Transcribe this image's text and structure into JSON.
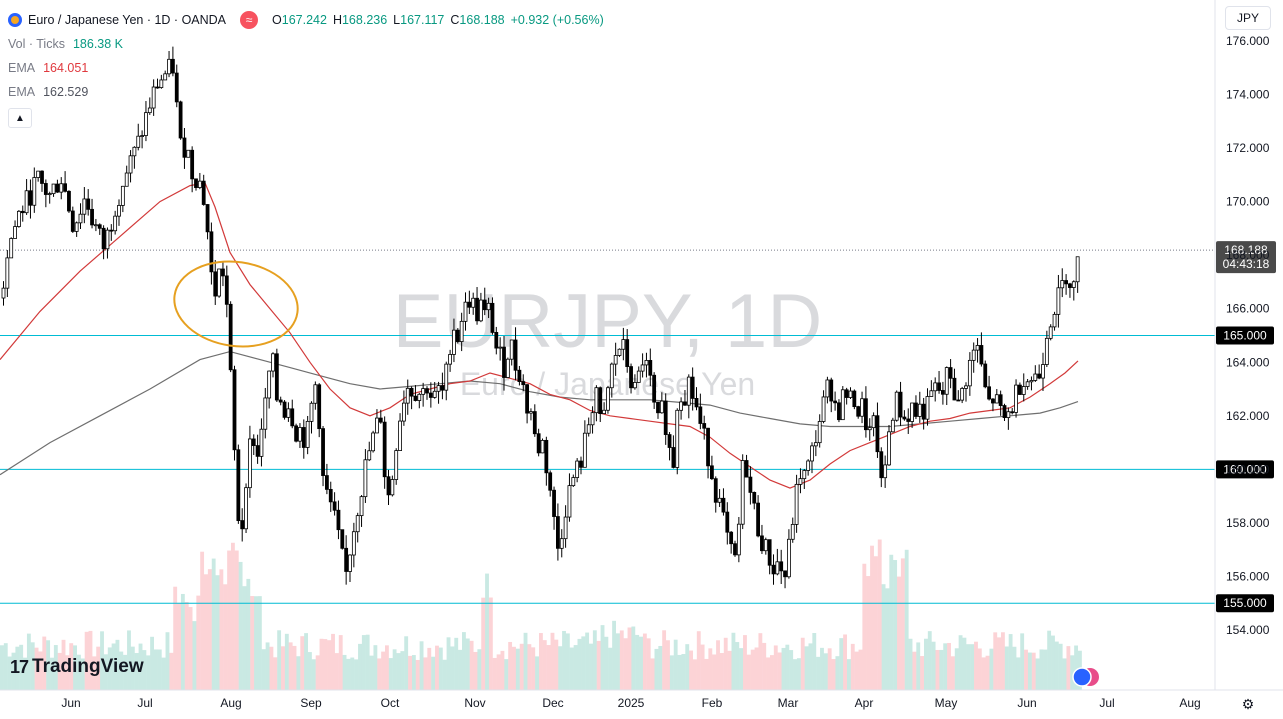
{
  "header": {
    "symbol_title": "Euro / Japanese Yen · 1D · OANDA",
    "compare_icon": "≈",
    "ohlc": [
      {
        "label": "O",
        "value": "167.242"
      },
      {
        "label": "H",
        "value": "168.236"
      },
      {
        "label": "L",
        "value": "167.117"
      },
      {
        "label": "C",
        "value": "168.188"
      }
    ],
    "change": "+0.932 (+0.56%)"
  },
  "indicators": [
    {
      "name": "Vol · Ticks",
      "value": "186.38 K",
      "color": "#089981"
    },
    {
      "name": "EMA",
      "value": "164.051",
      "color": "#e0393e"
    },
    {
      "name": "EMA",
      "value": "162.529",
      "color": "#50535e"
    }
  ],
  "currency_button": "JPY",
  "logo_text": "TradingView",
  "watermark": {
    "main": "EURJPY, 1D",
    "sub": "Euro / Japanese Yen"
  },
  "chart_data": {
    "type": "candlestick",
    "y_axis": {
      "min": 153,
      "max": 177,
      "ticks": [
        "154.000",
        "156.000",
        "158.000",
        "160.000",
        "162.000",
        "164.000",
        "166.000",
        "168.000",
        "170.000",
        "172.000",
        "174.000",
        "176.000"
      ]
    },
    "x_axis": {
      "labels": [
        "Jun",
        "Jul",
        "Aug",
        "Sep",
        "Oct",
        "Nov",
        "Dec",
        "2025",
        "Feb",
        "Mar",
        "Apr",
        "May",
        "Jun",
        "Jul",
        "Aug"
      ]
    },
    "last_price": {
      "value": "168.188",
      "countdown": "04:43:18"
    },
    "horizontal_levels": [
      "165.000",
      "160.000",
      "155.000"
    ],
    "price_path": [
      [
        0,
        166.4
      ],
      [
        6,
        168.2
      ],
      [
        12,
        168.9
      ],
      [
        18,
        169.6
      ],
      [
        24,
        169.9
      ],
      [
        30,
        170.4
      ],
      [
        36,
        170.8
      ],
      [
        42,
        170.5
      ],
      [
        48,
        170.2
      ],
      [
        54,
        170.6
      ],
      [
        60,
        170.9
      ],
      [
        66,
        170.0
      ],
      [
        72,
        169.1
      ],
      [
        78,
        169.6
      ],
      [
        84,
        170.2
      ],
      [
        90,
        169.4
      ],
      [
        96,
        168.9
      ],
      [
        102,
        168.3
      ],
      [
        108,
        169.0
      ],
      [
        114,
        169.9
      ],
      [
        120,
        170.6
      ],
      [
        126,
        171.2
      ],
      [
        132,
        171.7
      ],
      [
        138,
        172.3
      ],
      [
        144,
        173.1
      ],
      [
        150,
        173.8
      ],
      [
        156,
        174.4
      ],
      [
        162,
        174.7
      ],
      [
        168,
        174.9
      ],
      [
        173,
        175.1
      ],
      [
        176,
        173.0
      ],
      [
        180,
        171.8
      ],
      [
        184,
        172.2
      ],
      [
        188,
        171.6
      ],
      [
        192,
        170.9
      ],
      [
        196,
        171.0
      ],
      [
        200,
        170.5
      ],
      [
        204,
        169.8
      ],
      [
        208,
        168.0
      ],
      [
        212,
        166.3
      ],
      [
        216,
        167.1
      ],
      [
        220,
        167.6
      ],
      [
        224,
        167.0
      ],
      [
        228,
        164.2
      ],
      [
        232,
        161.3
      ],
      [
        236,
        158.4
      ],
      [
        240,
        157.6
      ],
      [
        244,
        159.6
      ],
      [
        248,
        160.8
      ],
      [
        252,
        161.2
      ],
      [
        256,
        160.4
      ],
      [
        260,
        161.7
      ],
      [
        264,
        162.4
      ],
      [
        268,
        163.7
      ],
      [
        272,
        163.9
      ],
      [
        276,
        162.4
      ],
      [
        280,
        162.7
      ],
      [
        284,
        162.1
      ],
      [
        288,
        162.6
      ],
      [
        292,
        161.7
      ],
      [
        296,
        161.3
      ],
      [
        300,
        161.6
      ],
      [
        304,
        160.9
      ],
      [
        308,
        161.8
      ],
      [
        312,
        162.9
      ],
      [
        316,
        163.4
      ],
      [
        320,
        159.9
      ],
      [
        324,
        159.2
      ],
      [
        328,
        158.8
      ],
      [
        332,
        158.3
      ],
      [
        336,
        157.6
      ],
      [
        340,
        156.8
      ],
      [
        344,
        155.9
      ],
      [
        348,
        156.9
      ],
      [
        352,
        157.8
      ],
      [
        356,
        158.6
      ],
      [
        360,
        159.3
      ],
      [
        364,
        160.1
      ],
      [
        368,
        160.7
      ],
      [
        372,
        161.2
      ],
      [
        376,
        161.7
      ],
      [
        380,
        162.1
      ],
      [
        384,
        159.3
      ],
      [
        388,
        158.9
      ],
      [
        392,
        160.1
      ],
      [
        396,
        161.5
      ],
      [
        400,
        162.3
      ],
      [
        404,
        163.0
      ],
      [
        408,
        163.2
      ],
      [
        412,
        162.8
      ],
      [
        416,
        163.1
      ],
      [
        420,
        162.6
      ],
      [
        424,
        163.3
      ],
      [
        428,
        162.9
      ],
      [
        432,
        162.5
      ],
      [
        436,
        163.0
      ],
      [
        440,
        162.7
      ],
      [
        444,
        163.3
      ],
      [
        448,
        164.6
      ],
      [
        452,
        165.4
      ],
      [
        456,
        164.9
      ],
      [
        460,
        165.7
      ],
      [
        464,
        166.0
      ],
      [
        468,
        166.4
      ],
      [
        472,
        166.1
      ],
      [
        476,
        165.8
      ],
      [
        480,
        166.2
      ],
      [
        484,
        165.6
      ],
      [
        488,
        166.0
      ],
      [
        492,
        165.1
      ],
      [
        496,
        164.3
      ],
      [
        500,
        164.1
      ],
      [
        504,
        163.7
      ],
      [
        508,
        164.9
      ],
      [
        512,
        164.3
      ],
      [
        516,
        163.5
      ],
      [
        520,
        163.8
      ],
      [
        524,
        162.1
      ],
      [
        528,
        162.6
      ],
      [
        532,
        161.4
      ],
      [
        536,
        160.7
      ],
      [
        540,
        161.2
      ],
      [
        544,
        160.3
      ],
      [
        548,
        159.5
      ],
      [
        552,
        158.2
      ],
      [
        556,
        157.0
      ],
      [
        560,
        157.7
      ],
      [
        564,
        158.6
      ],
      [
        568,
        159.2
      ],
      [
        572,
        159.7
      ],
      [
        576,
        160.0
      ],
      [
        580,
        160.4
      ],
      [
        584,
        161.1
      ],
      [
        588,
        161.9
      ],
      [
        592,
        162.6
      ],
      [
        596,
        163.2
      ],
      [
        600,
        161.0
      ],
      [
        604,
        162.4
      ],
      [
        608,
        163.3
      ],
      [
        612,
        164.1
      ],
      [
        616,
        164.4
      ],
      [
        620,
        164.7
      ],
      [
        624,
        164.2
      ],
      [
        628,
        163.6
      ],
      [
        632,
        162.8
      ],
      [
        636,
        163.1
      ],
      [
        640,
        164.2
      ],
      [
        644,
        163.9
      ],
      [
        648,
        163.4
      ],
      [
        652,
        162.4
      ],
      [
        656,
        161.6
      ],
      [
        660,
        162.2
      ],
      [
        664,
        161.8
      ],
      [
        668,
        160.7
      ],
      [
        672,
        160.3
      ],
      [
        676,
        162.6
      ],
      [
        680,
        163.0
      ],
      [
        684,
        162.8
      ],
      [
        688,
        163.4
      ],
      [
        692,
        162.6
      ],
      [
        696,
        162.2
      ],
      [
        700,
        161.4
      ],
      [
        704,
        161.0
      ],
      [
        708,
        160.3
      ],
      [
        712,
        159.6
      ],
      [
        716,
        158.9
      ],
      [
        720,
        158.5
      ],
      [
        724,
        157.6
      ],
      [
        728,
        157.1
      ],
      [
        732,
        156.4
      ],
      [
        736,
        156.9
      ],
      [
        740,
        159.8
      ],
      [
        744,
        160.4
      ],
      [
        748,
        159.2
      ],
      [
        752,
        158.6
      ],
      [
        756,
        157.9
      ],
      [
        760,
        157.4
      ],
      [
        764,
        157.0
      ],
      [
        768,
        156.7
      ],
      [
        772,
        156.3
      ],
      [
        776,
        156.5
      ],
      [
        780,
        156.2
      ],
      [
        784,
        156.0
      ],
      [
        788,
        157.2
      ],
      [
        792,
        158.4
      ],
      [
        796,
        159.3
      ],
      [
        800,
        160.1
      ],
      [
        804,
        159.6
      ],
      [
        808,
        160.3
      ],
      [
        812,
        160.8
      ],
      [
        816,
        161.6
      ],
      [
        820,
        162.1
      ],
      [
        824,
        162.7
      ],
      [
        828,
        163.3
      ],
      [
        832,
        162.6
      ],
      [
        836,
        162.1
      ],
      [
        840,
        162.5
      ],
      [
        844,
        163.0
      ],
      [
        848,
        162.4
      ],
      [
        852,
        162.8
      ],
      [
        856,
        162.1
      ],
      [
        860,
        162.4
      ],
      [
        864,
        161.8
      ],
      [
        868,
        161.3
      ],
      [
        872,
        161.6
      ],
      [
        876,
        160.9
      ],
      [
        880,
        159.2
      ],
      [
        884,
        160.2
      ],
      [
        888,
        161.6
      ],
      [
        892,
        162.3
      ],
      [
        896,
        162.6
      ],
      [
        900,
        162.1
      ],
      [
        904,
        161.8
      ],
      [
        908,
        162.2
      ],
      [
        912,
        162.4
      ],
      [
        916,
        161.9
      ],
      [
        920,
        162.5
      ],
      [
        924,
        162.0
      ],
      [
        928,
        162.6
      ],
      [
        932,
        162.9
      ],
      [
        936,
        163.1
      ],
      [
        940,
        162.6
      ],
      [
        944,
        163.3
      ],
      [
        948,
        163.7
      ],
      [
        952,
        163.1
      ],
      [
        956,
        162.2
      ],
      [
        960,
        162.8
      ],
      [
        964,
        163.4
      ],
      [
        968,
        163.9
      ],
      [
        972,
        164.3
      ],
      [
        976,
        164.6
      ],
      [
        980,
        163.7
      ],
      [
        984,
        162.9
      ],
      [
        988,
        162.4
      ],
      [
        992,
        162.7
      ],
      [
        996,
        162.4
      ],
      [
        1000,
        162.0
      ],
      [
        1004,
        161.8
      ],
      [
        1008,
        162.2
      ],
      [
        1012,
        162.5
      ],
      [
        1016,
        163.0
      ],
      [
        1020,
        163.4
      ],
      [
        1024,
        163.6
      ],
      [
        1028,
        163.2
      ],
      [
        1032,
        163.6
      ],
      [
        1036,
        163.3
      ],
      [
        1040,
        163.9
      ],
      [
        1044,
        165.0
      ],
      [
        1048,
        165.6
      ],
      [
        1052,
        166.0
      ],
      [
        1056,
        166.3
      ],
      [
        1060,
        166.7
      ],
      [
        1064,
        167.4
      ],
      [
        1068,
        167.1
      ],
      [
        1072,
        166.8
      ],
      [
        1076,
        167.6
      ],
      [
        1080,
        168.19
      ]
    ],
    "ema_fast": [
      [
        0,
        164.1
      ],
      [
        40,
        165.9
      ],
      [
        80,
        167.4
      ],
      [
        120,
        168.7
      ],
      [
        160,
        170.0
      ],
      [
        190,
        170.6
      ],
      [
        205,
        170.7
      ],
      [
        215,
        169.8
      ],
      [
        230,
        168.1
      ],
      [
        250,
        166.9
      ],
      [
        270,
        166.0
      ],
      [
        290,
        165.1
      ],
      [
        310,
        164.0
      ],
      [
        330,
        163.0
      ],
      [
        350,
        162.3
      ],
      [
        370,
        162.0
      ],
      [
        390,
        162.3
      ],
      [
        410,
        162.8
      ],
      [
        430,
        163.0
      ],
      [
        450,
        163.2
      ],
      [
        470,
        163.3
      ],
      [
        490,
        163.6
      ],
      [
        510,
        163.4
      ],
      [
        530,
        163.2
      ],
      [
        550,
        162.8
      ],
      [
        570,
        162.6
      ],
      [
        590,
        162.2
      ],
      [
        610,
        162.0
      ],
      [
        630,
        161.9
      ],
      [
        650,
        161.8
      ],
      [
        670,
        161.7
      ],
      [
        690,
        161.6
      ],
      [
        710,
        161.2
      ],
      [
        730,
        160.6
      ],
      [
        750,
        160.1
      ],
      [
        770,
        159.6
      ],
      [
        790,
        159.3
      ],
      [
        810,
        159.6
      ],
      [
        830,
        160.2
      ],
      [
        850,
        160.7
      ],
      [
        870,
        161.0
      ],
      [
        890,
        161.3
      ],
      [
        910,
        161.6
      ],
      [
        930,
        161.8
      ],
      [
        950,
        161.9
      ],
      [
        970,
        162.1
      ],
      [
        990,
        162.2
      ],
      [
        1010,
        162.3
      ],
      [
        1030,
        162.7
      ],
      [
        1050,
        163.2
      ],
      [
        1065,
        163.6
      ],
      [
        1078,
        164.05
      ]
    ],
    "ema_slow": [
      [
        0,
        159.8
      ],
      [
        50,
        161.0
      ],
      [
        100,
        162.0
      ],
      [
        150,
        163.0
      ],
      [
        200,
        164.1
      ],
      [
        230,
        164.4
      ],
      [
        260,
        164.1
      ],
      [
        290,
        163.8
      ],
      [
        320,
        163.5
      ],
      [
        350,
        163.2
      ],
      [
        380,
        163.0
      ],
      [
        410,
        163.1
      ],
      [
        440,
        163.2
      ],
      [
        470,
        163.3
      ],
      [
        500,
        163.2
      ],
      [
        530,
        162.9
      ],
      [
        560,
        162.7
      ],
      [
        590,
        162.6
      ],
      [
        620,
        162.6
      ],
      [
        650,
        162.6
      ],
      [
        680,
        162.5
      ],
      [
        710,
        162.4
      ],
      [
        740,
        162.1
      ],
      [
        770,
        161.9
      ],
      [
        800,
        161.7
      ],
      [
        830,
        161.6
      ],
      [
        860,
        161.6
      ],
      [
        890,
        161.6
      ],
      [
        920,
        161.7
      ],
      [
        950,
        161.8
      ],
      [
        980,
        161.9
      ],
      [
        1010,
        162.0
      ],
      [
        1040,
        162.1
      ],
      [
        1060,
        162.3
      ],
      [
        1078,
        162.53
      ]
    ]
  }
}
